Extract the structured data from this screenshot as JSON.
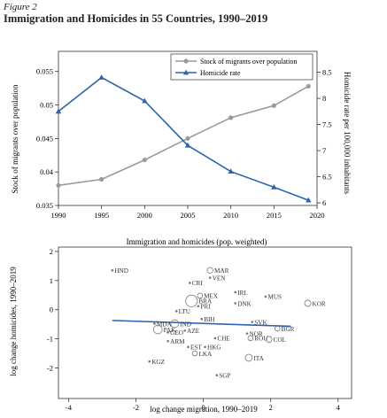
{
  "figure": {
    "label": "Figure 2",
    "title": "Immigration and Homicides in 55 Countries, 1990–2019"
  },
  "chart_data": [
    {
      "type": "line",
      "title": "Immigration and homicides (pop. weighted)",
      "x": [
        1990,
        1995,
        2000,
        2005,
        2010,
        2015,
        2019
      ],
      "xticks": [
        1990,
        1995,
        2000,
        2005,
        2010,
        2015,
        2020
      ],
      "xlim": [
        1990,
        2020
      ],
      "ylabel": "Stock of migrants over population",
      "ylim": [
        0.035,
        0.058
      ],
      "yticks": [
        0.035,
        0.04,
        0.045,
        0.05,
        0.055
      ],
      "ytick_labels": [
        "0.035",
        "0.04",
        "0.045",
        "0.05",
        "0.055"
      ],
      "y2label": "Homicide rate per 100,000 inhabitants",
      "y2lim": [
        5.95,
        8.9
      ],
      "y2ticks": [
        6,
        6.5,
        7,
        7.5,
        8,
        8.5
      ],
      "y2tick_labels": [
        "6",
        "6.5",
        "7",
        "7.5",
        "8",
        "8.5"
      ],
      "legend_position": "top-right",
      "series": [
        {
          "name": "Stock of migrants over population",
          "axis": "left",
          "marker": "circle",
          "color": "#9a9a9a",
          "values": [
            0.038,
            0.0389,
            0.0418,
            0.045,
            0.0481,
            0.0499,
            0.0528
          ]
        },
        {
          "name": "Homicide rate",
          "axis": "right",
          "marker": "triangle",
          "color": "#2f62b0",
          "values": [
            7.75,
            8.4,
            7.95,
            7.1,
            6.6,
            6.3,
            6.05
          ]
        }
      ]
    },
    {
      "type": "scatter",
      "xlabel": "log change migration, 1990–2019",
      "ylabel": "log change homicides, 1990–2019",
      "xlim": [
        -4.3,
        4.4
      ],
      "ylim": [
        -3.05,
        2.15
      ],
      "xticks": [
        -4,
        -2,
        0,
        2,
        4
      ],
      "xtick_labels": [
        "-4",
        "-2",
        "0",
        "2",
        "4"
      ],
      "yticks": [
        -2,
        -1,
        0,
        1,
        2
      ],
      "ytick_labels": [
        "-2",
        "-1",
        "0",
        "1",
        "2"
      ],
      "fit_line": {
        "x": [
          -2.7,
          2.6
        ],
        "y": [
          -0.37,
          -0.57
        ],
        "color": "#2f62b0"
      },
      "points": [
        {
          "label": "HND",
          "x": -2.7,
          "y": 1.35,
          "size": 1
        },
        {
          "label": "MAR",
          "x": 0.2,
          "y": 1.35,
          "size": 1.5
        },
        {
          "label": "VEN",
          "x": 0.2,
          "y": 1.1,
          "size": 1
        },
        {
          "label": "CRI",
          "x": -0.4,
          "y": 0.92,
          "size": 1
        },
        {
          "label": "IRL",
          "x": 0.95,
          "y": 0.6,
          "size": 1
        },
        {
          "label": "MUS",
          "x": 1.85,
          "y": 0.45,
          "size": 1
        },
        {
          "label": "KOR",
          "x": 3.1,
          "y": 0.22,
          "size": 1.6
        },
        {
          "label": "DNK",
          "x": 0.95,
          "y": 0.22,
          "size": 1
        },
        {
          "label": "LTU",
          "x": -0.8,
          "y": -0.05,
          "size": 1
        },
        {
          "label": "MDA",
          "x": -1.45,
          "y": -0.48,
          "size": 1
        },
        {
          "label": "IND",
          "x": -0.85,
          "y": -0.48,
          "size": 2
        },
        {
          "label": "PAK",
          "x": -1.35,
          "y": -0.68,
          "size": 2.2
        },
        {
          "label": "ARM",
          "x": -1.05,
          "y": -1.08,
          "size": 1
        },
        {
          "label": "EST",
          "x": -0.45,
          "y": -1.28,
          "size": 1
        },
        {
          "label": "HKG",
          "x": 0.05,
          "y": -1.28,
          "size": 1
        },
        {
          "label": "LKA",
          "x": -0.25,
          "y": -1.5,
          "size": 1.3
        },
        {
          "label": "KGZ",
          "x": -1.6,
          "y": -1.78,
          "size": 1
        },
        {
          "label": "ITA",
          "x": 1.35,
          "y": -1.65,
          "size": 1.8
        },
        {
          "label": "SGP",
          "x": 0.4,
          "y": -2.25,
          "size": 1
        },
        {
          "label": "SVK",
          "x": 1.45,
          "y": -0.42,
          "size": 1
        },
        {
          "label": "BGR",
          "x": 2.2,
          "y": -0.65,
          "size": 1.3
        },
        {
          "label": "NOR",
          "x": 1.3,
          "y": -0.82,
          "size": 1
        },
        {
          "label": "ROU",
          "x": 1.4,
          "y": -0.98,
          "size": 1.3
        },
        {
          "label": "COL",
          "x": 1.95,
          "y": -1.02,
          "size": 1.5
        },
        {
          "label": "CHE",
          "x": 0.35,
          "y": -0.98,
          "size": 1
        },
        {
          "label": "BRA",
          "x": -0.35,
          "y": 0.3,
          "size": 3
        },
        {
          "label": "PRI",
          "x": -0.15,
          "y": 0.12,
          "size": 1
        },
        {
          "label": "MEX",
          "x": -0.1,
          "y": 0.48,
          "size": 1.3
        },
        {
          "label": "BIH",
          "x": -0.05,
          "y": -0.32,
          "size": 1
        },
        {
          "label": "AZE",
          "x": -0.55,
          "y": -0.72,
          "size": 1
        },
        {
          "label": "GEO",
          "x": -1.05,
          "y": -0.78,
          "size": 1
        }
      ]
    }
  ]
}
